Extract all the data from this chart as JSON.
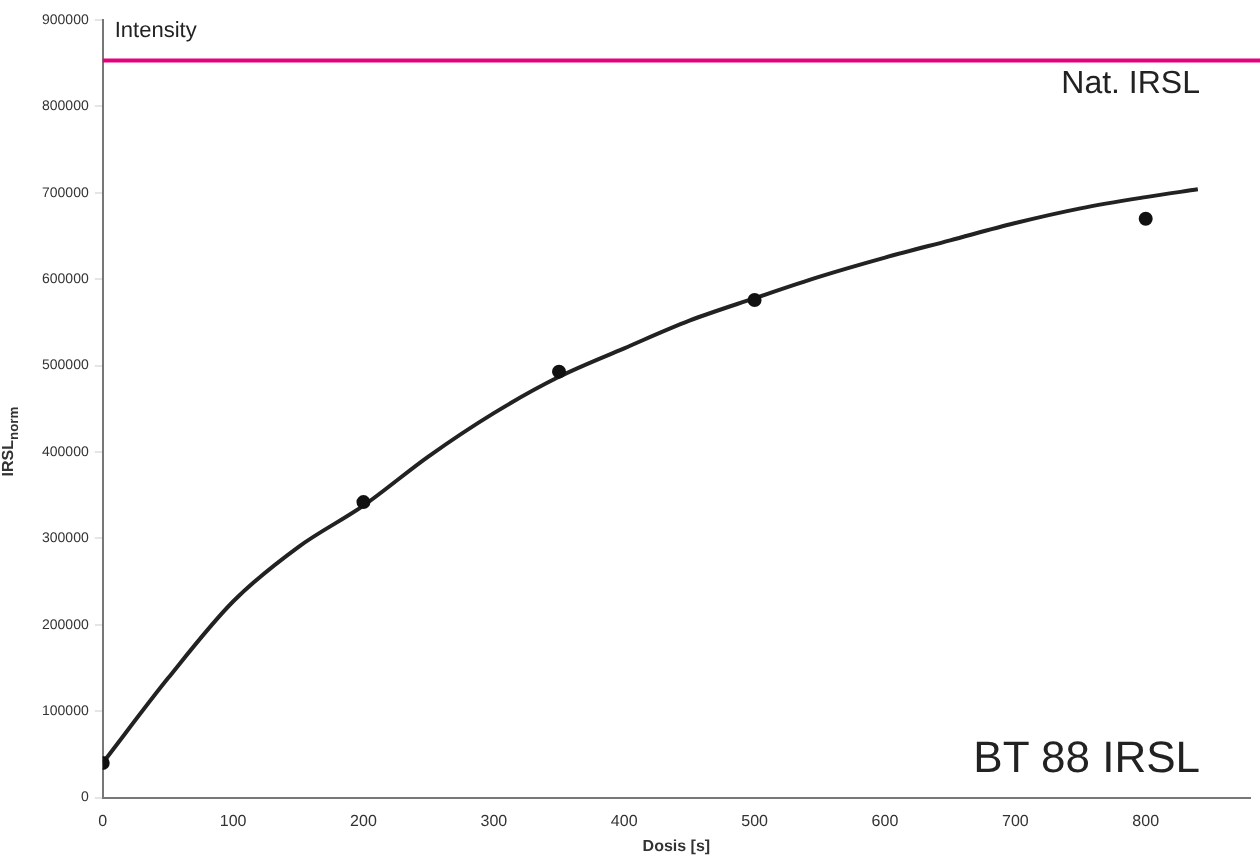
{
  "chart_data": {
    "type": "scatter",
    "xlabel": "Dosis [s]",
    "ylabel": "IRSL$_{norm}$",
    "xlim": [
      0,
      880
    ],
    "xticks": [
      0,
      100,
      200,
      300,
      400,
      500,
      600,
      700,
      800
    ],
    "ylim": [
      0,
      900000
    ],
    "yticks": [
      0,
      100000,
      200000,
      300000,
      400000,
      500000,
      600000,
      700000,
      800000,
      900000
    ],
    "grid": false,
    "marker": "circle",
    "series": [
      {
        "type": "scatter",
        "color": "#111111",
        "x": [
          0,
          200,
          350,
          500,
          800
        ],
        "values": [
          40000,
          342000,
          493000,
          576000,
          670000
        ]
      },
      {
        "type": "line",
        "color": "#222222",
        "marker": "none",
        "x": [
          0,
          50,
          100,
          150,
          200,
          250,
          300,
          350,
          400,
          450,
          500,
          550,
          600,
          650,
          700,
          750,
          800,
          840
        ],
        "values": [
          40000,
          138000,
          227000,
          290000,
          338000,
          395000,
          445000,
          487000,
          520000,
          552000,
          578000,
          603000,
          625000,
          645000,
          665000,
          682000,
          695000,
          704000
        ]
      }
    ],
    "ref_lines": [
      {
        "axis": "y",
        "value": 853000,
        "label": "Nat. IRSL",
        "color": "#e6007e"
      }
    ],
    "annotations": [
      "Intensity",
      "BT 88 IRSL"
    ]
  }
}
